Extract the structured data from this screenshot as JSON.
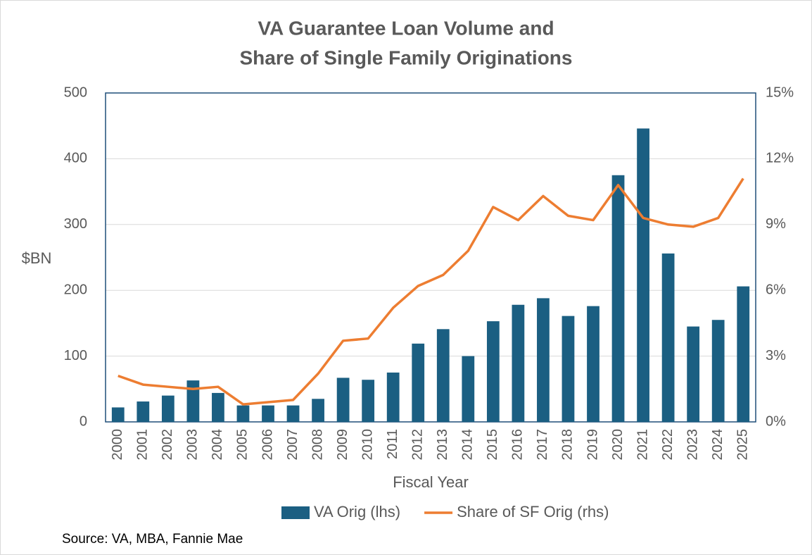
{
  "chart_data": {
    "type": "bar-line",
    "title": [
      "VA Guarantee Loan Volume and",
      "Share of Single Family Originations"
    ],
    "y_label": "$BN",
    "x_label": "Fiscal Year",
    "source": "Source: VA, MBA, Fannie Mae",
    "categories": [
      "2000",
      "2001",
      "2002",
      "2003",
      "2004",
      "2005",
      "2006",
      "2007",
      "2008",
      "2009",
      "2010",
      "2011",
      "2012",
      "2013",
      "2014",
      "2015",
      "2016",
      "2017",
      "2018",
      "2019",
      "2020",
      "2021",
      "2022",
      "2023",
      "2024",
      "2025"
    ],
    "series": [
      {
        "name": "VA Orig (lhs)",
        "type": "bar",
        "color": "#1b5f82",
        "values": [
          22,
          31,
          40,
          63,
          44,
          25,
          25,
          25,
          35,
          67,
          64,
          75,
          119,
          141,
          100,
          153,
          178,
          188,
          161,
          176,
          375,
          446,
          256,
          145,
          155,
          206
        ]
      },
      {
        "name": "Share of SF Orig (rhs)",
        "type": "line",
        "color": "#ed7d31",
        "axis": "y2",
        "values": [
          2.1,
          1.7,
          1.6,
          1.5,
          1.6,
          0.8,
          0.9,
          1.0,
          2.2,
          3.7,
          3.8,
          5.2,
          6.2,
          6.7,
          7.8,
          9.8,
          9.2,
          10.3,
          9.4,
          9.2,
          10.8,
          9.3,
          9.0,
          8.9,
          9.3,
          11.1
        ]
      }
    ],
    "ylim": [
      0,
      500
    ],
    "yticks": [
      0,
      100,
      200,
      300,
      400,
      500
    ],
    "y2lim": [
      0,
      15
    ],
    "y2ticks": [
      {
        "value": 0,
        "label": "0%"
      },
      {
        "value": 3,
        "label": "3%"
      },
      {
        "value": 6,
        "label": "6%"
      },
      {
        "value": 9,
        "label": "9%"
      },
      {
        "value": 12,
        "label": "12%"
      },
      {
        "value": 15,
        "label": "15%"
      }
    ],
    "grid": true,
    "legend": "bottom"
  }
}
